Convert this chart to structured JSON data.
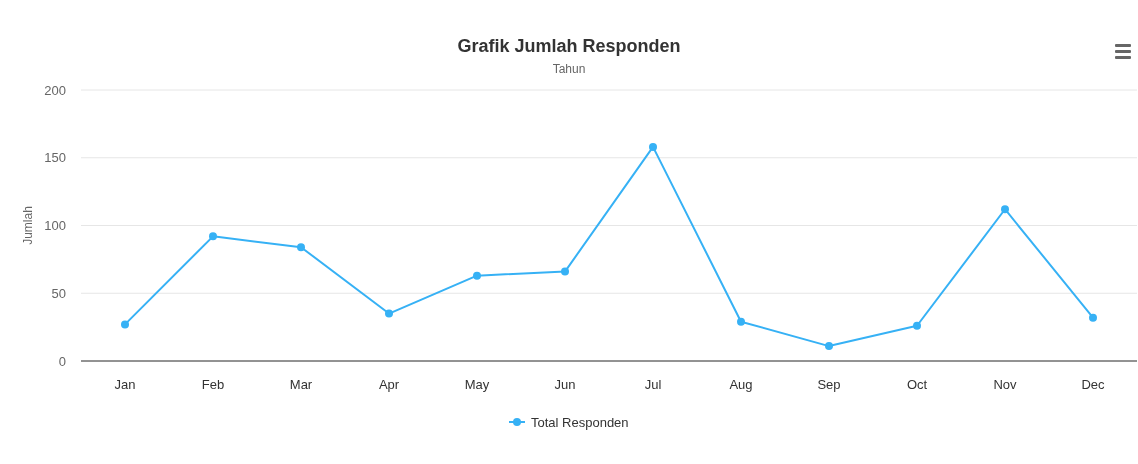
{
  "chart_data": {
    "type": "line",
    "title": "Grafik Jumlah Responden",
    "subtitle": "Tahun",
    "ylabel": "Jumlah",
    "categories": [
      "Jan",
      "Feb",
      "Mar",
      "Apr",
      "May",
      "Jun",
      "Jul",
      "Aug",
      "Sep",
      "Oct",
      "Nov",
      "Dec"
    ],
    "series": [
      {
        "name": "Total Responden",
        "color": "#36b1f5",
        "values": [
          27,
          92,
          84,
          35,
          63,
          66,
          158,
          29,
          11,
          26,
          112,
          32
        ]
      }
    ],
    "ylim": [
      0,
      200
    ],
    "yticks": [
      0,
      50,
      100,
      150,
      200
    ],
    "grid": "y",
    "legend": "bottom",
    "marker": "circle",
    "line_style": "solid"
  }
}
